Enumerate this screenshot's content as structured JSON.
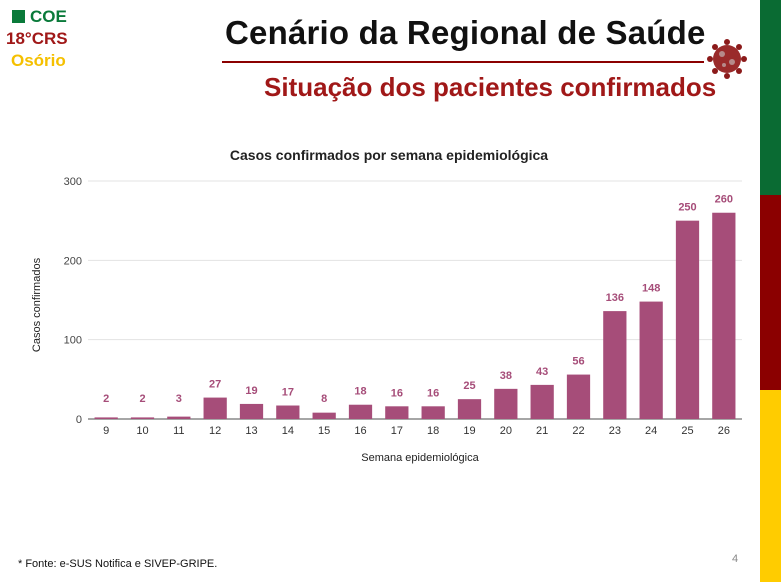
{
  "logo": {
    "line1": "COE",
    "line2": "18°CRS",
    "line3": "Osório"
  },
  "header": {
    "title": "Cenário da Regional de Saúde",
    "subtitle": "Situação dos pacientes confirmados"
  },
  "footer": {
    "source": "* Fonte: e-SUS Notifica e SIVEP-GRIPE.",
    "page_number": "4"
  },
  "colors": {
    "bar": "#a64d79",
    "label": "#a64d79",
    "stripe_green": "#0a6b33",
    "stripe_red": "#8b0000",
    "stripe_yellow": "#ffcc00"
  },
  "chart_data": {
    "type": "bar",
    "title": "Casos confirmados por  semana epidemiológica",
    "xlabel": "Semana epidemiológica",
    "ylabel": "Casos confirmados",
    "categories": [
      "9",
      "10",
      "11",
      "12",
      "13",
      "14",
      "15",
      "16",
      "17",
      "18",
      "19",
      "20",
      "21",
      "22",
      "23",
      "24",
      "25",
      "26"
    ],
    "values": [
      2,
      2,
      3,
      27,
      19,
      17,
      8,
      18,
      16,
      16,
      25,
      38,
      43,
      56,
      136,
      148,
      250,
      260
    ],
    "ylim": [
      0,
      300
    ],
    "yticks": [
      0,
      100,
      200,
      300
    ],
    "grid": true,
    "data_labels": true,
    "legend": "none"
  }
}
